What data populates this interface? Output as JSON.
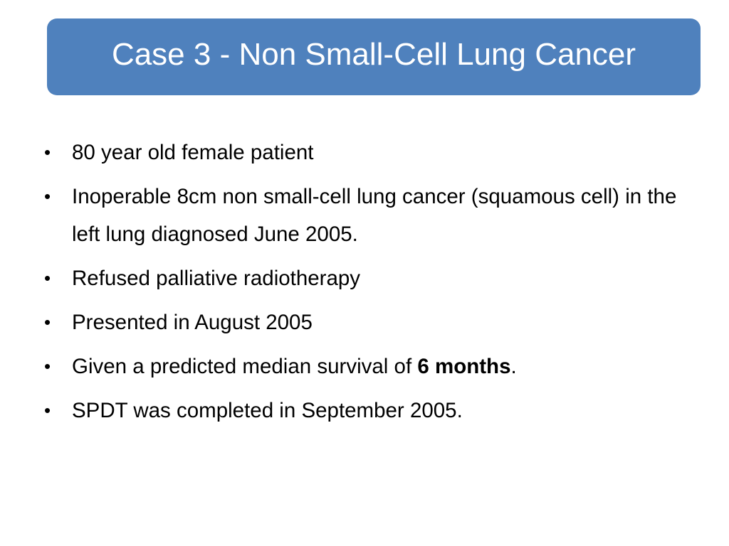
{
  "slide": {
    "title": "Case 3 - Non Small-Cell Lung Cancer",
    "accent_color": "#4f81bd",
    "bullet_glyph": "•",
    "bullets": [
      {
        "text": "80 year old female patient"
      },
      {
        "text": "Inoperable 8cm non small-cell lung cancer (squamous cell) in the left lung diagnosed June 2005."
      },
      {
        "text": "Refused palliative radiotherapy"
      },
      {
        "text": "Presented in August 2005"
      },
      {
        "text_before": "Given a predicted median survival of ",
        "bold": "6 months",
        "text_after": "."
      },
      {
        "text": "SPDT was completed in September 2005."
      }
    ]
  }
}
